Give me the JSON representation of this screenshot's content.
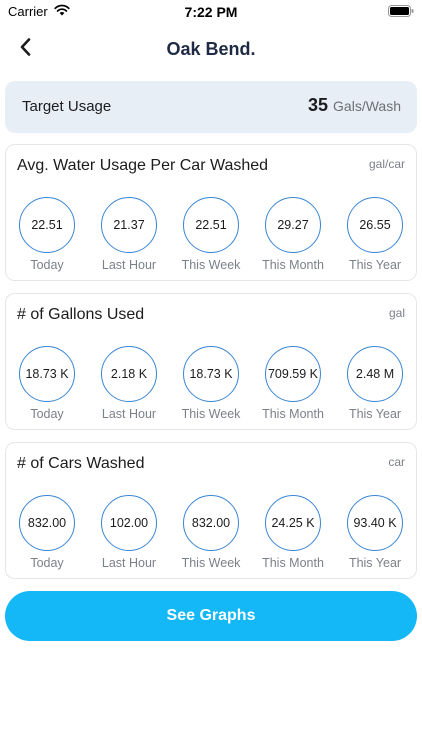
{
  "status_bar": {
    "carrier": "Carrier",
    "time": "7:22 PM"
  },
  "nav": {
    "title": "Oak Bend."
  },
  "target": {
    "label": "Target Usage",
    "value": "35",
    "unit": "Gals/Wash"
  },
  "cards": [
    {
      "title": "Avg. Water Usage Per Car Washed",
      "unit": "gal/car",
      "items": [
        {
          "value": "22.51",
          "label": "Today"
        },
        {
          "value": "21.37",
          "label": "Last Hour"
        },
        {
          "value": "22.51",
          "label": "This Week"
        },
        {
          "value": "29.27",
          "label": "This Month"
        },
        {
          "value": "26.55",
          "label": "This Year"
        }
      ]
    },
    {
      "title": "# of Gallons Used",
      "unit": "gal",
      "items": [
        {
          "value": "18.73 K",
          "label": "Today"
        },
        {
          "value": "2.18 K",
          "label": "Last Hour"
        },
        {
          "value": "18.73 K",
          "label": "This Week"
        },
        {
          "value": "709.59 K",
          "label": "This Month"
        },
        {
          "value": "2.48 M",
          "label": "This Year"
        }
      ]
    },
    {
      "title": "# of Cars Washed",
      "unit": "car",
      "items": [
        {
          "value": "832.00",
          "label": "Today"
        },
        {
          "value": "102.00",
          "label": "Last Hour"
        },
        {
          "value": "832.00",
          "label": "This Week"
        },
        {
          "value": "24.25 K",
          "label": "This Month"
        },
        {
          "value": "93.40 K",
          "label": "This Year"
        }
      ]
    }
  ],
  "button": {
    "label": "See Graphs"
  },
  "colors": {
    "accent": "#14b8f6",
    "circle_border": "#3a86d4",
    "title": "#1f2a44",
    "target_bg": "#e8eef6"
  }
}
